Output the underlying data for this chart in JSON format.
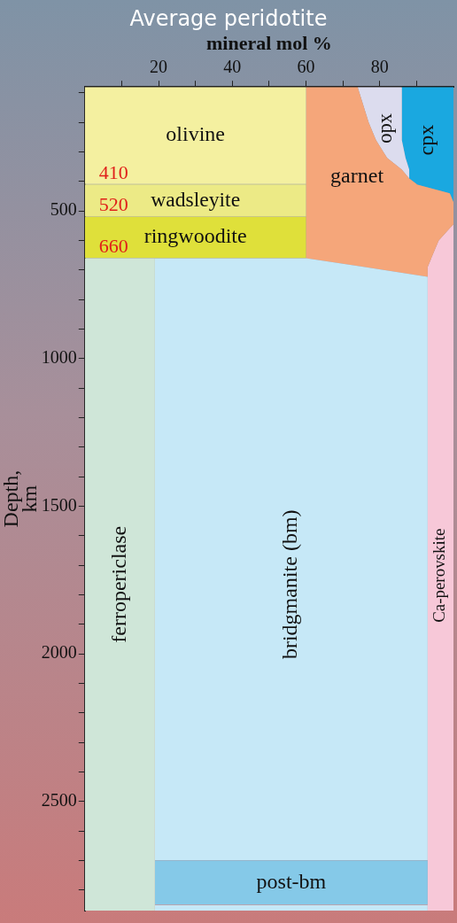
{
  "chart_data": {
    "type": "area",
    "title": "Average peridotite",
    "xlabel": "mineral mol %",
    "ylabel": "Depth, km",
    "orientation": "horizontal",
    "stacked": true,
    "x": [
      80,
      200,
      260,
      320,
      360,
      390,
      409,
      410,
      440,
      470,
      519,
      520,
      545,
      600,
      659,
      660,
      690,
      723,
      2699,
      2700,
      2850,
      2851,
      2870
    ],
    "xlim": [
      0,
      100
    ],
    "xticks": [
      {
        "value": 10,
        "label": null
      },
      20,
      {
        "value": 30,
        "label": null
      },
      40,
      {
        "value": 50,
        "label": null
      },
      60,
      {
        "value": 70,
        "label": null
      },
      80,
      {
        "value": 90,
        "label": null
      }
    ],
    "ylim": [
      2870,
      80
    ],
    "yticks": [
      {
        "value": 100,
        "label": null
      },
      {
        "value": 200,
        "label": null
      },
      {
        "value": 300,
        "label": null
      },
      {
        "value": 400,
        "label": null
      },
      500,
      {
        "value": 600,
        "label": null
      },
      {
        "value": 700,
        "label": null
      },
      {
        "value": 800,
        "label": null
      },
      {
        "value": 900,
        "label": null
      },
      1000,
      {
        "value": 1100,
        "label": null
      },
      {
        "value": 1200,
        "label": null
      },
      {
        "value": 1300,
        "label": null
      },
      {
        "value": 1400,
        "label": null
      },
      1500,
      {
        "value": 1600,
        "label": null
      },
      {
        "value": 1700,
        "label": null
      },
      {
        "value": 1800,
        "label": null
      },
      {
        "value": 1900,
        "label": null
      },
      2000,
      {
        "value": 2100,
        "label": null
      },
      {
        "value": 2200,
        "label": null
      },
      {
        "value": 2300,
        "label": null
      },
      {
        "value": 2400,
        "label": null
      },
      2500,
      {
        "value": 2600,
        "label": null
      },
      {
        "value": 2700,
        "label": null
      },
      {
        "value": 2800,
        "label": null
      }
    ],
    "series": [
      {
        "name": "ferropericlase",
        "color": "#cfe6d8",
        "values": [
          null,
          null,
          null,
          null,
          null,
          null,
          null,
          null,
          null,
          null,
          null,
          null,
          null,
          null,
          null,
          19,
          19,
          19,
          19,
          19,
          19,
          19,
          19
        ]
      },
      {
        "name": "olivine",
        "color": "#f4f0a0",
        "values": [
          60,
          60,
          60,
          60,
          60,
          60,
          60,
          null,
          null,
          null,
          null,
          null,
          null,
          null,
          null,
          null,
          null,
          null,
          null,
          null,
          null,
          null,
          null
        ]
      },
      {
        "name": "wadsleyite",
        "color": "#ecea86",
        "values": [
          null,
          null,
          null,
          null,
          null,
          null,
          null,
          60,
          60,
          60,
          60,
          null,
          null,
          null,
          null,
          null,
          null,
          null,
          null,
          null,
          null,
          null,
          null
        ]
      },
      {
        "name": "ringwoodite",
        "color": "#dfe03a",
        "values": [
          null,
          null,
          null,
          null,
          null,
          null,
          null,
          null,
          null,
          null,
          null,
          60,
          60,
          60,
          60,
          null,
          null,
          null,
          null,
          null,
          null,
          null,
          null
        ]
      },
      {
        "name": "bridgmanite (bm)",
        "color": "#c6e8f7",
        "values": [
          null,
          null,
          null,
          null,
          null,
          null,
          null,
          null,
          null,
          null,
          null,
          null,
          null,
          null,
          null,
          41,
          57,
          74,
          74,
          null,
          null,
          74,
          74
        ]
      },
      {
        "name": "post-bm",
        "color": "#85c9e8",
        "values": [
          null,
          null,
          null,
          null,
          null,
          null,
          null,
          null,
          null,
          null,
          null,
          null,
          null,
          null,
          null,
          null,
          null,
          null,
          null,
          74,
          74,
          null,
          null
        ]
      },
      {
        "name": "garnet",
        "color": "#f5a67a",
        "values": [
          14,
          17,
          19,
          22,
          26,
          28,
          30,
          30,
          39,
          40,
          40,
          40,
          40,
          36,
          34,
          34,
          17,
          0,
          null,
          null,
          null,
          null,
          null
        ]
      },
      {
        "name": "opx",
        "color": "#dcdcee",
        "values": [
          12,
          9,
          7,
          5,
          2,
          0,
          null,
          null,
          null,
          null,
          null,
          null,
          null,
          null,
          null,
          null,
          null,
          null,
          null,
          null,
          null,
          null,
          null
        ]
      },
      {
        "name": "cpx",
        "color": "#1aa8e0",
        "values": [
          14,
          14,
          14,
          13,
          12,
          12,
          10,
          10,
          1,
          0,
          null,
          null,
          null,
          null,
          null,
          null,
          null,
          null,
          null,
          null,
          null,
          null,
          null
        ]
      },
      {
        "name": "Ca-perovskite",
        "color": "#f7c8d8",
        "values": [
          null,
          null,
          null,
          null,
          null,
          null,
          null,
          null,
          null,
          null,
          null,
          null,
          0,
          4,
          6,
          6,
          7,
          7,
          7,
          7,
          7,
          7,
          7
        ]
      }
    ],
    "annotations": [
      "410",
      "520",
      "660"
    ]
  }
}
